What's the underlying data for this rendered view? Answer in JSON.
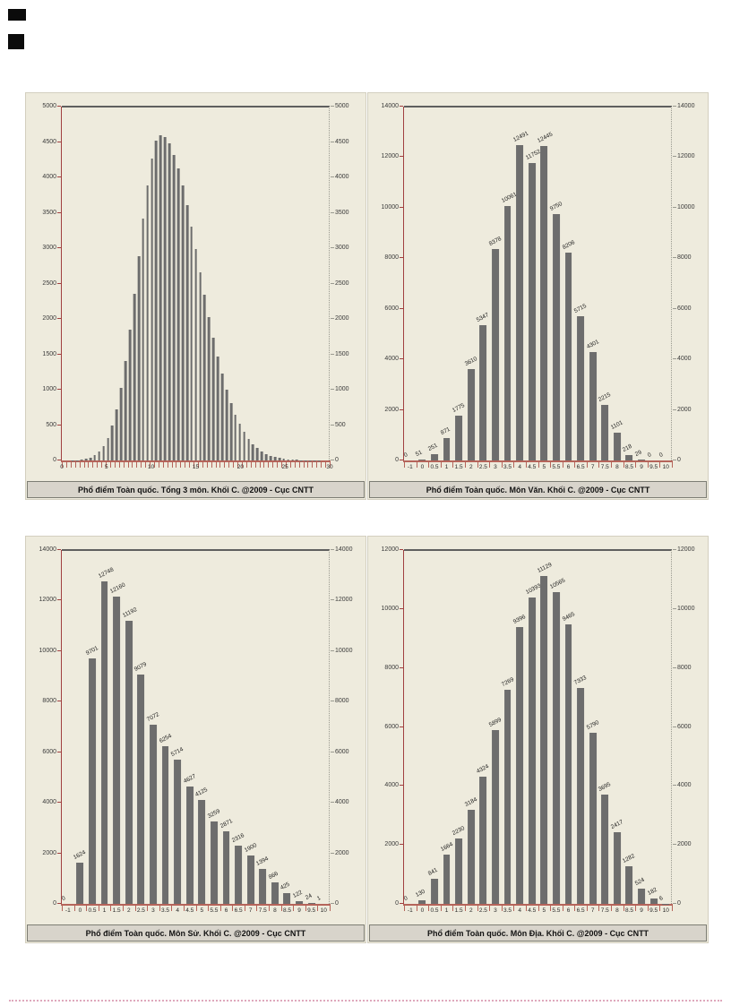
{
  "colors": {
    "chart_bg": "#eeebdd",
    "bar": "#6d6d6d",
    "axis_red": "#a04040",
    "axis_x": "#b5645a",
    "frame": "#5f5f5f",
    "caption_bg": "#d8d4cb"
  },
  "chart_data": [
    {
      "id": "tong-3-mon",
      "type": "bar",
      "title": "Phổ điểm Toàn quốc. Tổng 3 môn. Khối C. @2009 - Cục CNTT",
      "ylim": [
        0,
        5000
      ],
      "ystep": 500,
      "x_range": [
        0,
        30
      ],
      "x_step": 0.5,
      "xtick_labels": [
        "0",
        "5",
        "10",
        "15",
        "20",
        "25",
        "30"
      ],
      "show_value_labels": false,
      "values": [
        0,
        0,
        2,
        5,
        10,
        22,
        40,
        75,
        122,
        205,
        320,
        490,
        722,
        1030,
        1408,
        1850,
        2360,
        2890,
        3421,
        3890,
        4272,
        4515,
        4600,
        4569,
        4477,
        4315,
        4130,
        3880,
        3607,
        3300,
        2985,
        2660,
        2340,
        2030,
        1738,
        1470,
        1223,
        1005,
        815,
        652,
        515,
        400,
        308,
        233,
        175,
        130,
        94,
        68,
        48,
        33,
        23,
        15,
        10,
        7,
        4,
        3,
        2,
        1,
        1,
        0,
        0
      ]
    },
    {
      "id": "mon-van",
      "type": "bar",
      "title": "Phổ điểm Toàn quốc. Môn Văn. Khối C. @2009 - Cục CNTT",
      "ylim": [
        0,
        14000
      ],
      "ystep": 2000,
      "categories": [
        "-1",
        "0",
        "0.5",
        "1",
        "1.5",
        "2",
        "2.5",
        "3",
        "3.5",
        "4",
        "4.5",
        "5",
        "5.5",
        "6",
        "6.5",
        "7",
        "7.5",
        "8",
        "8.5",
        "9",
        "9.5",
        "10"
      ],
      "show_value_labels": true,
      "values": [
        0,
        51,
        251,
        871,
        1775,
        3610,
        5347,
        8378,
        10061,
        12491,
        11752,
        12445,
        9750,
        8206,
        5715,
        4301,
        2215,
        1101,
        218,
        29,
        0,
        0
      ]
    },
    {
      "id": "mon-su",
      "type": "bar",
      "title": "Phổ điểm Toàn quốc. Môn Sử. Khối C. @2009 - Cục CNTT",
      "ylim": [
        0,
        14000
      ],
      "ystep": 2000,
      "categories": [
        "-1",
        "0",
        "0.5",
        "1",
        "1.5",
        "2",
        "2.5",
        "3",
        "3.5",
        "4",
        "4.5",
        "5",
        "5.5",
        "6",
        "6.5",
        "7",
        "7.5",
        "8",
        "8.5",
        "9",
        "9.5",
        "10"
      ],
      "show_value_labels": true,
      "values": [
        0,
        1624,
        9701,
        12748,
        12160,
        11192,
        9079,
        7072,
        6254,
        5714,
        4627,
        4125,
        3259,
        2871,
        2316,
        1900,
        1394,
        866,
        425,
        122,
        24,
        1
      ]
    },
    {
      "id": "mon-dia",
      "type": "bar",
      "title": "Phổ điểm Toàn quốc. Môn Địa. Khối C. @2009 - Cục CNTT",
      "ylim": [
        0,
        12000
      ],
      "ystep": 2000,
      "categories": [
        "-1",
        "0",
        "0.5",
        "1",
        "1.5",
        "2",
        "2.5",
        "3",
        "3.5",
        "4",
        "4.5",
        "5",
        "5.5",
        "6",
        "6.5",
        "7",
        "7.5",
        "8",
        "8.5",
        "9",
        "9.5",
        "10"
      ],
      "show_value_labels": true,
      "values": [
        0,
        130,
        841,
        1664,
        2230,
        3184,
        4324,
        5899,
        7269,
        9396,
        10393,
        11129,
        10565,
        9465,
        7333,
        5790,
        3695,
        2417,
        1282,
        524,
        182,
        6
      ]
    }
  ]
}
